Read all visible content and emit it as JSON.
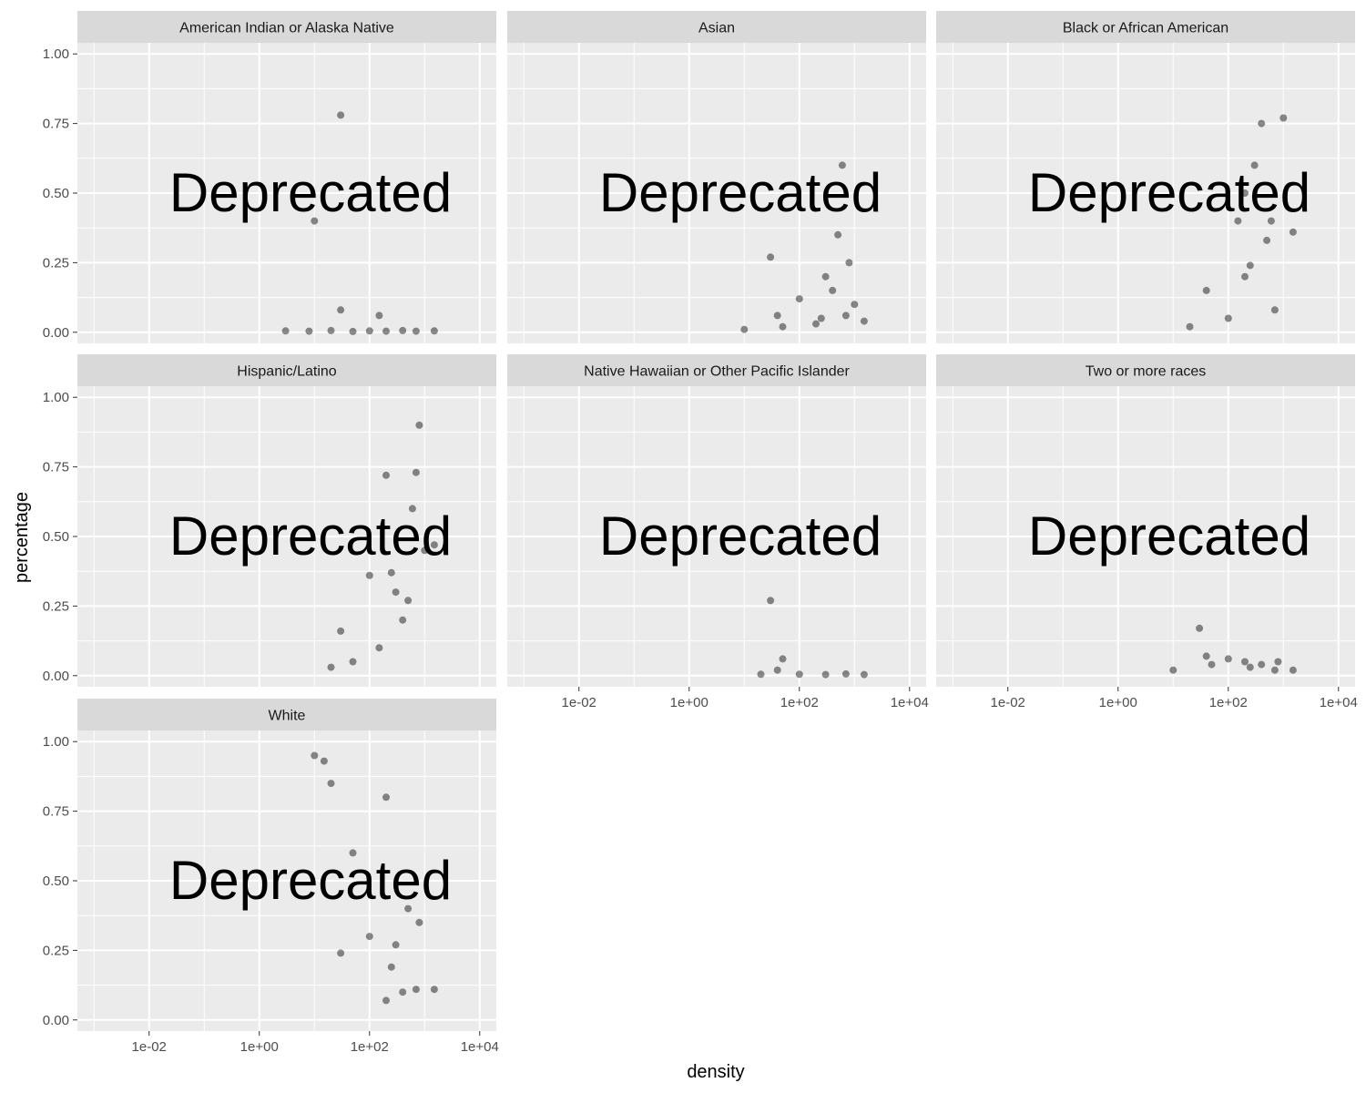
{
  "figure": {
    "xlabel": "density",
    "ylabel": "percentage",
    "watermark": "Deprecated"
  },
  "chart_data": {
    "type": "scatter",
    "facet_wrap": {
      "ncol": 3
    },
    "x_scale": "log10",
    "xlim": [
      0.0005,
      20000
    ],
    "ylim": [
      -0.04,
      1.04
    ],
    "x_ticks": [
      0.01,
      1,
      100,
      10000
    ],
    "x_tick_labels": [
      "1e-02",
      "1e+00",
      "1e+02",
      "1e+04"
    ],
    "y_ticks": [
      0,
      0.25,
      0.5,
      0.75,
      1
    ],
    "y_tick_labels": [
      "0.00",
      "0.25",
      "0.50",
      "0.75",
      "1.00"
    ],
    "grid": true,
    "point_color": "#000000",
    "point_alpha": 0.03,
    "panel_background": "#ebebeb",
    "strip_background": "#d9d9d9",
    "panels": [
      {
        "label": "American Indian or Alaska Native",
        "points": [
          [
            3,
            0.005
          ],
          [
            8,
            0.004
          ],
          [
            20,
            0.006
          ],
          [
            50,
            0.003
          ],
          [
            100,
            0.005
          ],
          [
            200,
            0.004
          ],
          [
            400,
            0.006
          ],
          [
            700,
            0.004
          ],
          [
            1500,
            0.005
          ],
          [
            30,
            0.08
          ],
          [
            150,
            0.06
          ],
          [
            10,
            0.4
          ],
          [
            30,
            0.78
          ]
        ]
      },
      {
        "label": "Asian",
        "points": [
          [
            30,
            0.27
          ],
          [
            40,
            0.06
          ],
          [
            200,
            0.03
          ],
          [
            250,
            0.05
          ],
          [
            700,
            0.06
          ],
          [
            1500,
            0.04
          ],
          [
            100,
            0.12
          ],
          [
            300,
            0.2
          ],
          [
            500,
            0.35
          ],
          [
            600,
            0.6
          ],
          [
            400,
            0.15
          ],
          [
            50,
            0.02
          ],
          [
            10,
            0.01
          ],
          [
            1000,
            0.1
          ],
          [
            800,
            0.25
          ]
        ]
      },
      {
        "label": "Black or African American",
        "points": [
          [
            40,
            0.15
          ],
          [
            150,
            0.4
          ],
          [
            200,
            0.2
          ],
          [
            250,
            0.24
          ],
          [
            400,
            0.75
          ],
          [
            500,
            0.33
          ],
          [
            700,
            0.08
          ],
          [
            1500,
            0.36
          ],
          [
            20,
            0.02
          ],
          [
            100,
            0.05
          ],
          [
            300,
            0.6
          ],
          [
            600,
            0.4
          ],
          [
            1000,
            0.77
          ],
          [
            200,
            0.5
          ]
        ]
      },
      {
        "label": "Hispanic/Latino",
        "points": [
          [
            100,
            0.36
          ],
          [
            200,
            0.72
          ],
          [
            250,
            0.37
          ],
          [
            500,
            0.27
          ],
          [
            700,
            0.73
          ],
          [
            1500,
            0.47
          ],
          [
            30,
            0.16
          ],
          [
            50,
            0.05
          ],
          [
            300,
            0.3
          ],
          [
            400,
            0.2
          ],
          [
            600,
            0.6
          ],
          [
            800,
            0.9
          ],
          [
            150,
            0.1
          ],
          [
            20,
            0.03
          ],
          [
            1000,
            0.45
          ]
        ]
      },
      {
        "label": "Native Hawaiian or Other Pacific Islander",
        "points": [
          [
            30,
            0.27
          ],
          [
            40,
            0.02
          ],
          [
            20,
            0.005
          ],
          [
            100,
            0.005
          ],
          [
            300,
            0.004
          ],
          [
            700,
            0.006
          ],
          [
            1500,
            0.004
          ],
          [
            50,
            0.06
          ]
        ]
      },
      {
        "label": "Two or more races",
        "points": [
          [
            30,
            0.17
          ],
          [
            40,
            0.07
          ],
          [
            200,
            0.05
          ],
          [
            250,
            0.03
          ],
          [
            700,
            0.02
          ],
          [
            1500,
            0.02
          ],
          [
            10,
            0.02
          ],
          [
            100,
            0.06
          ],
          [
            400,
            0.04
          ],
          [
            800,
            0.05
          ],
          [
            50,
            0.04
          ]
        ]
      },
      {
        "label": "White",
        "points": [
          [
            30,
            0.24
          ],
          [
            100,
            0.3
          ],
          [
            200,
            0.8
          ],
          [
            250,
            0.19
          ],
          [
            300,
            0.27
          ],
          [
            400,
            0.1
          ],
          [
            700,
            0.11
          ],
          [
            1500,
            0.11
          ],
          [
            15,
            0.93
          ],
          [
            50,
            0.6
          ],
          [
            500,
            0.4
          ],
          [
            200,
            0.07
          ],
          [
            10,
            0.95
          ],
          [
            20,
            0.85
          ],
          [
            800,
            0.35
          ]
        ]
      }
    ]
  }
}
